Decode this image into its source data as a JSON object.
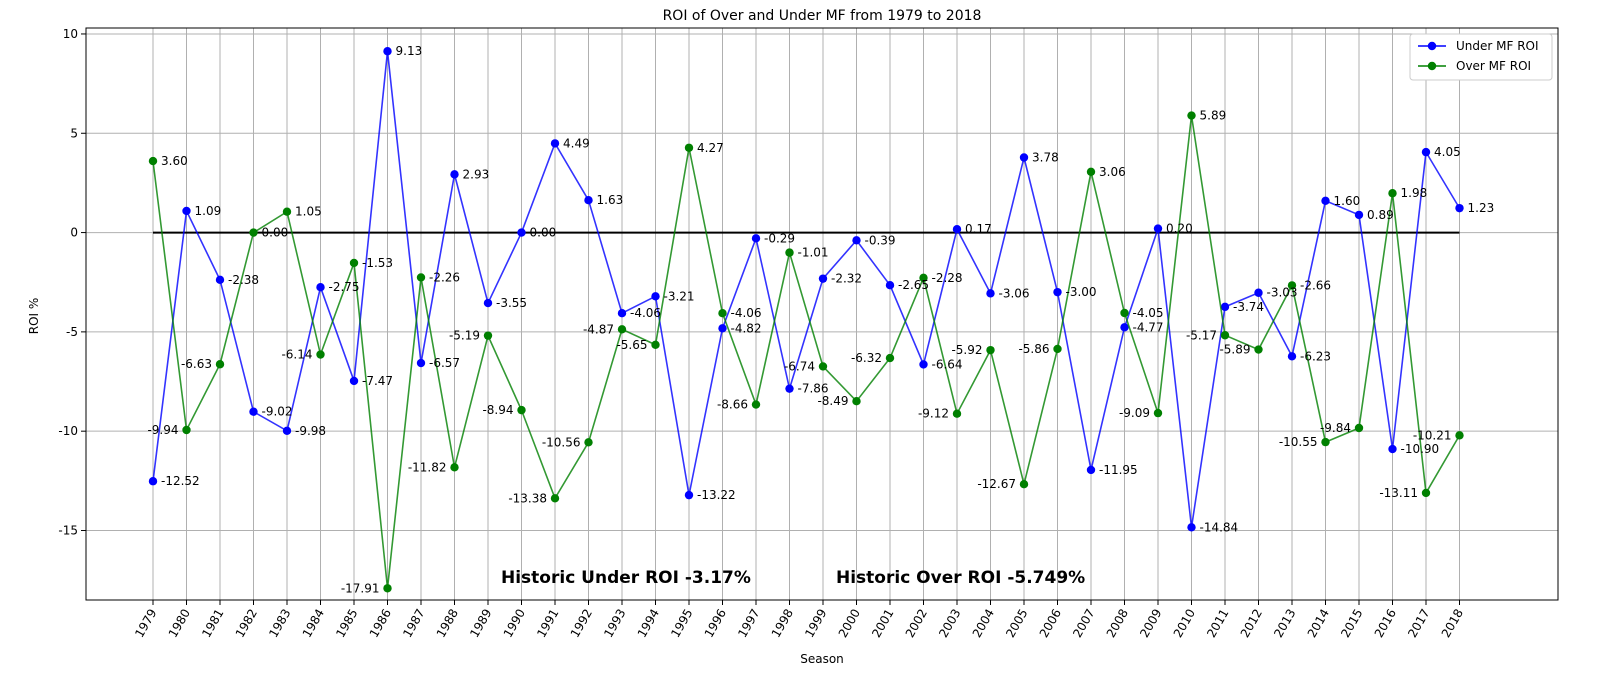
{
  "chart_data": {
    "type": "line",
    "title": "ROI of Over and Under MF from 1979 to 2018",
    "xlabel": "Season",
    "ylabel": "ROI %",
    "ylim": [
      -18.5,
      10.3
    ],
    "yticks": [
      10,
      5,
      0,
      -5,
      -10,
      -15
    ],
    "grid": true,
    "legend_position": "top-right",
    "reference_line": {
      "y": 0,
      "color": "#000000"
    },
    "categories": [
      "1979",
      "1980",
      "1981",
      "1982",
      "1983",
      "1984",
      "1985",
      "1986",
      "1987",
      "1988",
      "1989",
      "1990",
      "1991",
      "1992",
      "1993",
      "1994",
      "1995",
      "1996",
      "1997",
      "1998",
      "1999",
      "2000",
      "2001",
      "2002",
      "2003",
      "2004",
      "2005",
      "2006",
      "2007",
      "2008",
      "2009",
      "2010",
      "2011",
      "2012",
      "2013",
      "2014",
      "2015",
      "2016",
      "2017",
      "2018"
    ],
    "series": [
      {
        "name": "Under MF ROI",
        "color": "#0000ff",
        "values": [
          -12.52,
          1.09,
          -2.38,
          -9.02,
          -9.98,
          -2.75,
          -7.47,
          9.13,
          -6.57,
          2.93,
          -3.55,
          0.0,
          4.49,
          1.63,
          -4.06,
          -3.21,
          -13.22,
          -4.82,
          -0.29,
          -7.86,
          -2.32,
          -0.39,
          -2.65,
          -6.64,
          0.17,
          -3.06,
          3.78,
          -3.0,
          -11.95,
          -4.77,
          0.2,
          -14.84,
          -3.74,
          -3.03,
          -6.23,
          1.6,
          0.89,
          -10.9,
          4.05,
          1.23
        ],
        "labels": [
          "-12.52",
          "1.09",
          "-2.38",
          "-9.02",
          "-9.98",
          "-2.75",
          "-7.47",
          "9.13",
          "-6.57",
          "2.93",
          "-3.55",
          "0.00",
          "4.49",
          "1.63",
          "-4.06",
          "-3.21",
          "-13.22",
          "-4.82",
          "-0.29",
          "-7.86",
          "-2.32",
          "-0.39",
          "-2.65",
          "-6.64",
          "0.17",
          "-3.06",
          "3.78",
          "-3.00",
          "-11.95",
          "-4.77",
          "0.20",
          "-14.84",
          "-3.74",
          "-3.03",
          "-6.23",
          "1.60",
          "0.89",
          "-10.90",
          "4.05",
          "1.23"
        ]
      },
      {
        "name": "Over MF ROI",
        "color": "#008000",
        "values": [
          3.6,
          -9.94,
          -6.63,
          0.0,
          1.05,
          -6.14,
          -1.53,
          -17.91,
          -2.26,
          -11.82,
          -5.19,
          -8.94,
          -13.38,
          -10.56,
          -4.87,
          -5.65,
          4.27,
          -4.06,
          -8.66,
          -1.01,
          -6.74,
          -8.49,
          -6.32,
          -2.28,
          -9.12,
          -5.92,
          -12.67,
          -5.86,
          3.06,
          -4.05,
          -9.09,
          5.89,
          -5.17,
          -5.89,
          -2.66,
          -10.55,
          -9.84,
          1.98,
          -13.11,
          -10.21
        ],
        "labels": [
          "3.60",
          "-9.94",
          "-6.63",
          "0.00",
          "1.05",
          "-6.14",
          "-1.53",
          "-17.91",
          "-2.26",
          "-11.82",
          "-5.19",
          "-8.94",
          "-13.38",
          "-10.56",
          "-4.87",
          "-5.65",
          "4.27",
          "-4.06",
          "-8.66",
          "-1.01",
          "-6.74",
          "-8.49",
          "-6.32",
          "-2.28",
          "-9.12",
          "-5.92",
          "-12.67",
          "-5.86",
          "3.06",
          "-4.05",
          "-9.09",
          "5.89",
          "-5.17",
          "-5.89",
          "-2.66",
          "-10.55",
          "-9.84",
          "1.98",
          "-13.11",
          "-10.21"
        ]
      }
    ],
    "annotations": [
      {
        "text": "Historic Under ROI -3.17%",
        "x": "1993",
        "y": -17.5
      },
      {
        "text": "Historic Over ROI -5.749%",
        "x": "2003",
        "y": -17.5
      }
    ]
  }
}
